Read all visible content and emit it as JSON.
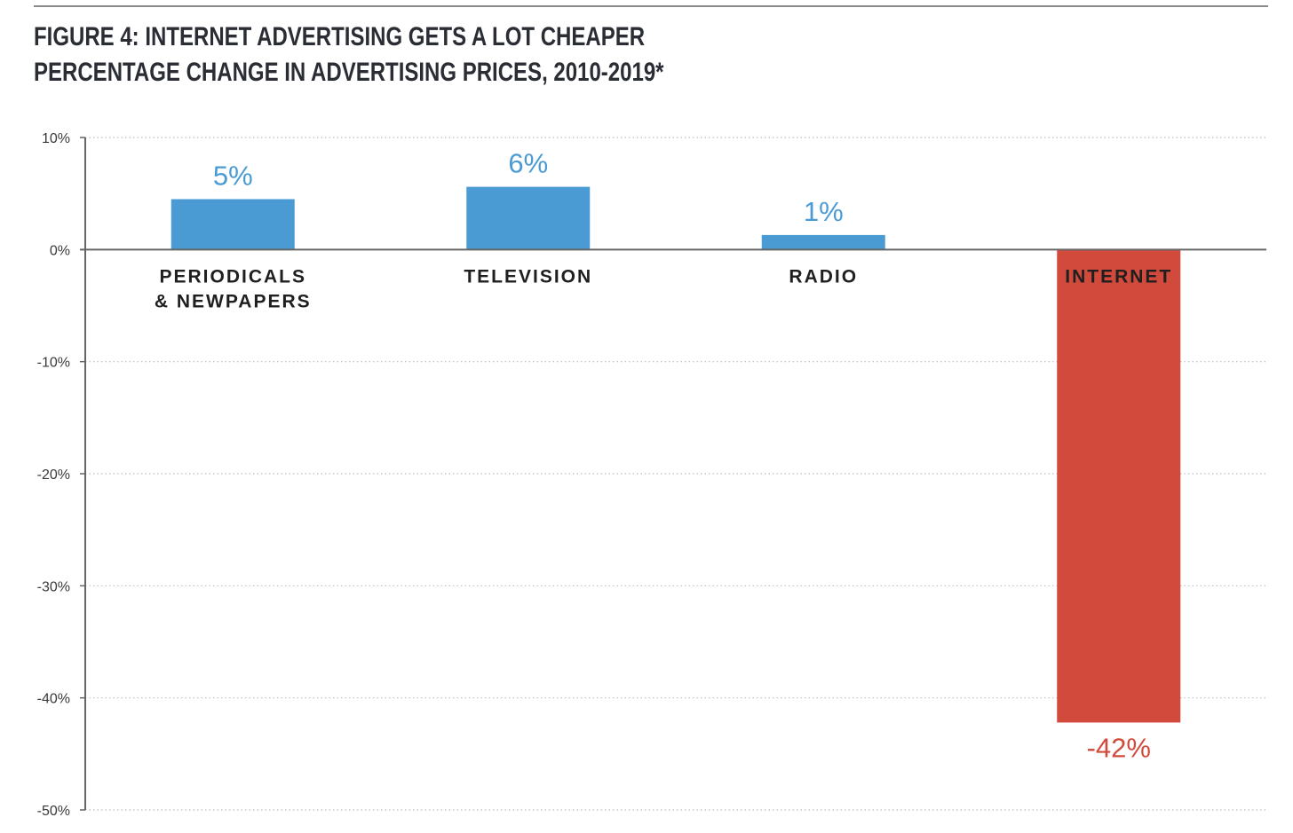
{
  "header": {
    "title_line1": "FIGURE 4: INTERNET ADVERTISING GETS A LOT CHEAPER",
    "title_line2": "PERCENTAGE CHANGE IN ADVERTISING PRICES, 2010-2019*"
  },
  "colors": {
    "positive_bar": "#4a9bd4",
    "negative_bar": "#d14a3c",
    "axis": "#666666",
    "grid": "#bdbdbd",
    "label_on_red": "#2a1a18"
  },
  "chart_data": {
    "type": "bar",
    "title": "FIGURE 4: INTERNET ADVERTISING GETS A LOT CHEAPER",
    "subtitle": "PERCENTAGE CHANGE IN ADVERTISING PRICES, 2010-2019*",
    "xlabel": "",
    "ylabel": "",
    "categories": [
      [
        "PERIODICALS",
        "& NEWPAPERS"
      ],
      [
        "TELEVISION"
      ],
      [
        "RADIO"
      ],
      [
        "INTERNET"
      ]
    ],
    "values": [
      4.5,
      5.6,
      1.3,
      -42.2
    ],
    "value_labels": [
      "5%",
      "6%",
      "1%",
      "-42%"
    ],
    "bar_colors": [
      "#4a9bd4",
      "#4a9bd4",
      "#4a9bd4",
      "#d14a3c"
    ],
    "ylim": [
      -50,
      10
    ],
    "y_ticks": [
      10,
      0,
      -10,
      -20,
      -30,
      -40,
      -50
    ],
    "y_tick_labels": [
      "10%",
      "0%",
      "-10%",
      "-20%",
      "-30%",
      "-40%",
      "-50%"
    ],
    "grid": true,
    "grid_style": "dotted",
    "legend": "none"
  }
}
